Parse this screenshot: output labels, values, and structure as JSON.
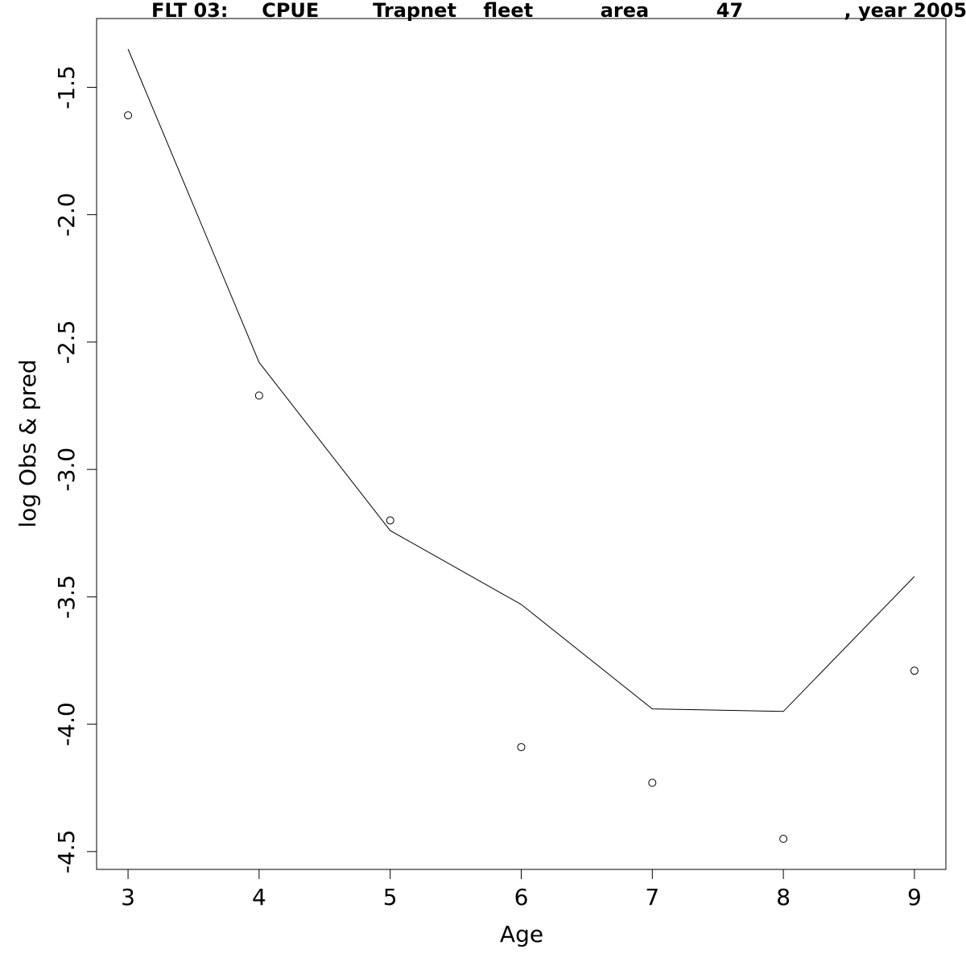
{
  "chart_data": {
    "type": "line",
    "title": "FLT 03:     CPUE        Trapnet    fleet          area          47               , year 2005",
    "xlabel": "Age",
    "ylabel": "log Obs & pred",
    "xlim": [
      2.76,
      9.24
    ],
    "ylim": [
      -4.57,
      -1.23
    ],
    "x_ticks": [
      3,
      4,
      5,
      6,
      7,
      8,
      9
    ],
    "y_ticks": [
      -1.5,
      -2.0,
      -2.5,
      -3.0,
      -3.5,
      -4.0,
      -4.5
    ],
    "x_tick_labels": [
      "3",
      "4",
      "5",
      "6",
      "7",
      "8",
      "9"
    ],
    "y_tick_labels": [
      "-1.5",
      "-2.0",
      "-2.5",
      "-3.0",
      "-3.5",
      "-4.0",
      "-4.5"
    ],
    "grid": false,
    "series": [
      {
        "kind": "line",
        "x": [
          3,
          4,
          5,
          6,
          7,
          8,
          9
        ],
        "y": [
          -1.35,
          -2.58,
          -3.24,
          -3.53,
          -3.94,
          -3.95,
          -3.42
        ]
      },
      {
        "kind": "points",
        "x": [
          3,
          4,
          5,
          6,
          7,
          8,
          9
        ],
        "y": [
          -1.61,
          -2.71,
          -3.2,
          -4.09,
          -4.23,
          -4.45,
          -3.79
        ]
      }
    ],
    "colors": {
      "line": "#000000",
      "points": "#000000",
      "axes": "#000000"
    }
  }
}
